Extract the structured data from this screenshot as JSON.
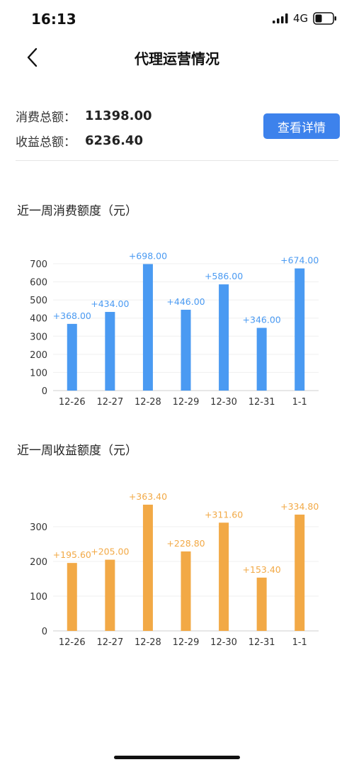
{
  "status_bar": {
    "time": "16:13",
    "network": "4G"
  },
  "nav": {
    "title": "代理运营情况"
  },
  "summary": {
    "consume_label": "消费总额：",
    "consume_value": "11398.00",
    "income_label": "收益总额：",
    "income_value": "6236.40",
    "detail_button": "查看详情"
  },
  "icons": {
    "back": "chevron-left-icon",
    "signal": "signal-icon",
    "battery": "battery-icon"
  },
  "colors": {
    "accent": "#3d82ec",
    "consume_bar": "#4a9af2",
    "income_bar": "#f2a946"
  },
  "sections": {
    "consume_title": "近一周消费额度（元）",
    "income_title": "近一周收益额度（元）"
  },
  "chart_data": [
    {
      "type": "bar",
      "title": "近一周消费额度（元）",
      "categories": [
        "12-26",
        "12-27",
        "12-28",
        "12-29",
        "12-30",
        "12-31",
        "1-1"
      ],
      "values": [
        368,
        434,
        698,
        446,
        586,
        346,
        674
      ],
      "data_labels": [
        "+368.00",
        "+434.00",
        "+698.00",
        "+446.00",
        "+586.00",
        "+346.00",
        "+674.00"
      ],
      "yticks": [
        0,
        100,
        200,
        300,
        400,
        500,
        600,
        700
      ],
      "ylim": [
        0,
        700
      ],
      "grid": true,
      "color": "#4a9af2"
    },
    {
      "type": "bar",
      "title": "近一周收益额度（元）",
      "categories": [
        "12-26",
        "12-27",
        "12-28",
        "12-29",
        "12-30",
        "12-31",
        "1-1"
      ],
      "values": [
        195.6,
        205,
        363.4,
        228.8,
        311.6,
        153.4,
        334.8
      ],
      "data_labels": [
        "+195.60",
        "+205.00",
        "+363.40",
        "+228.80",
        "+311.60",
        "+153.40",
        "+334.80"
      ],
      "yticks": [
        0,
        100,
        200,
        300
      ],
      "ylim": [
        0,
        300
      ],
      "grid": true,
      "color": "#f2a946"
    }
  ]
}
